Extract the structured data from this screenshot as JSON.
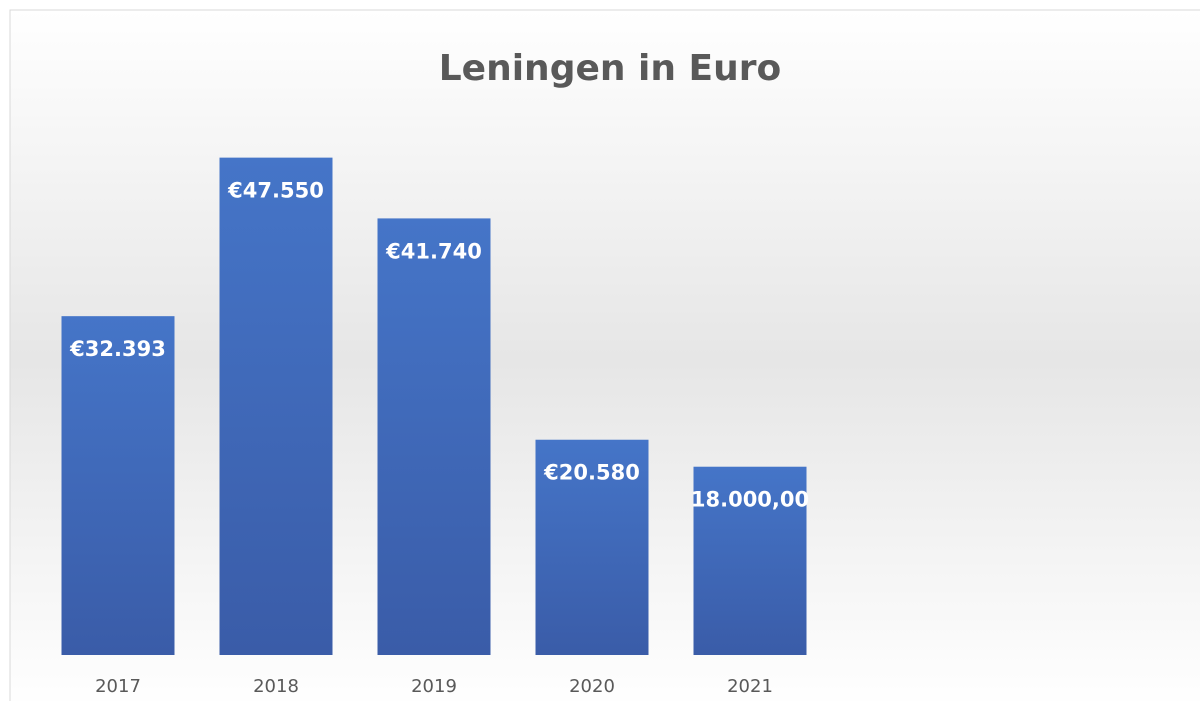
{
  "chart_data": {
    "type": "bar",
    "title": "Leningen in Euro",
    "categories": [
      "2017",
      "2018",
      "2019",
      "2020",
      "2021"
    ],
    "values": [
      32393,
      47550,
      41740,
      20580,
      18000
    ],
    "value_labels": [
      "€32.393",
      "€47.550",
      "€41.740",
      "€20.580",
      "18.000,00"
    ],
    "color": "#4472c4",
    "ylim": [
      0,
      50000
    ]
  }
}
